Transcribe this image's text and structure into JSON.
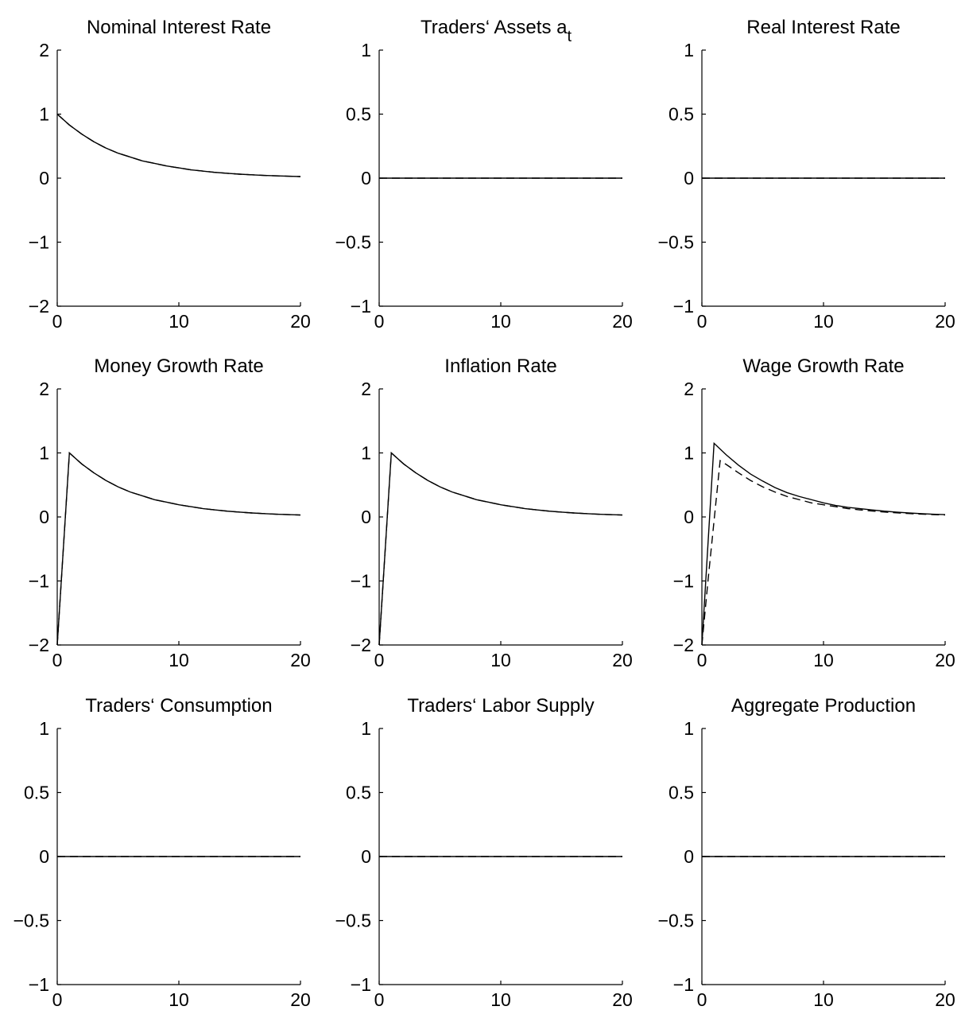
{
  "chart_data": [
    {
      "type": "line",
      "title": "Nominal Interest Rate",
      "xlim": [
        0,
        20
      ],
      "ylim": [
        -2,
        2
      ],
      "xticks": [
        0,
        10,
        20
      ],
      "yticks": [
        -2,
        -1,
        0,
        1,
        2
      ],
      "x": [
        0,
        1,
        2,
        3,
        4,
        5,
        6,
        7,
        8,
        9,
        10,
        11,
        12,
        13,
        14,
        15,
        16,
        17,
        18,
        19,
        20
      ],
      "series": [
        {
          "style": "solid",
          "values": [
            1.0,
            0.83,
            0.69,
            0.57,
            0.47,
            0.39,
            0.33,
            0.27,
            0.23,
            0.19,
            0.16,
            0.13,
            0.11,
            0.09,
            0.075,
            0.062,
            0.052,
            0.043,
            0.036,
            0.03,
            0.025
          ]
        },
        {
          "style": "dashed",
          "values": [
            1.0,
            0.83,
            0.69,
            0.57,
            0.47,
            0.39,
            0.33,
            0.27,
            0.23,
            0.19,
            0.16,
            0.13,
            0.11,
            0.09,
            0.075,
            0.062,
            0.052,
            0.043,
            0.036,
            0.03,
            0.025
          ]
        }
      ]
    },
    {
      "type": "line",
      "title": "Traders‘ Assets a",
      "title_subscript": "t",
      "xlim": [
        0,
        20
      ],
      "ylim": [
        -1,
        1
      ],
      "xticks": [
        0,
        10,
        20
      ],
      "yticks": [
        -1,
        -0.5,
        0,
        0.5,
        1
      ],
      "x": [
        0,
        20
      ],
      "series": [
        {
          "style": "solid",
          "values": [
            0,
            0
          ]
        },
        {
          "style": "dashed",
          "values": [
            0,
            0
          ]
        }
      ]
    },
    {
      "type": "line",
      "title": "Real Interest Rate",
      "xlim": [
        0,
        20
      ],
      "ylim": [
        -1,
        1
      ],
      "xticks": [
        0,
        10,
        20
      ],
      "yticks": [
        -1,
        -0.5,
        0,
        0.5,
        1
      ],
      "x": [
        0,
        20
      ],
      "series": [
        {
          "style": "solid",
          "values": [
            0,
            0
          ]
        },
        {
          "style": "dashed",
          "values": [
            0,
            0
          ]
        }
      ]
    },
    {
      "type": "line",
      "title": "Money Growth Rate",
      "xlim": [
        0,
        20
      ],
      "ylim": [
        -2,
        2
      ],
      "xticks": [
        0,
        10,
        20
      ],
      "yticks": [
        -2,
        -1,
        0,
        1,
        2
      ],
      "x": [
        0,
        1,
        2,
        3,
        4,
        5,
        6,
        7,
        8,
        9,
        10,
        11,
        12,
        13,
        14,
        15,
        16,
        17,
        18,
        19,
        20
      ],
      "series": [
        {
          "style": "solid",
          "values": [
            -2.0,
            1.0,
            0.83,
            0.69,
            0.57,
            0.47,
            0.39,
            0.33,
            0.27,
            0.23,
            0.19,
            0.16,
            0.13,
            0.11,
            0.09,
            0.075,
            0.062,
            0.052,
            0.043,
            0.036,
            0.03
          ]
        },
        {
          "style": "dashed",
          "values": [
            -2.0,
            1.0,
            0.83,
            0.69,
            0.57,
            0.47,
            0.39,
            0.33,
            0.27,
            0.23,
            0.19,
            0.16,
            0.13,
            0.11,
            0.09,
            0.075,
            0.062,
            0.052,
            0.043,
            0.036,
            0.03
          ]
        }
      ]
    },
    {
      "type": "line",
      "title": "Inflation Rate",
      "xlim": [
        0,
        20
      ],
      "ylim": [
        -2,
        2
      ],
      "xticks": [
        0,
        10,
        20
      ],
      "yticks": [
        -2,
        -1,
        0,
        1,
        2
      ],
      "x": [
        0,
        1,
        2,
        3,
        4,
        5,
        6,
        7,
        8,
        9,
        10,
        11,
        12,
        13,
        14,
        15,
        16,
        17,
        18,
        19,
        20
      ],
      "series": [
        {
          "style": "solid",
          "values": [
            -2.0,
            1.0,
            0.83,
            0.69,
            0.57,
            0.47,
            0.39,
            0.33,
            0.27,
            0.23,
            0.19,
            0.16,
            0.13,
            0.11,
            0.09,
            0.075,
            0.062,
            0.052,
            0.043,
            0.036,
            0.03
          ]
        },
        {
          "style": "dashed",
          "values": [
            -2.0,
            1.0,
            0.83,
            0.69,
            0.57,
            0.47,
            0.39,
            0.33,
            0.27,
            0.23,
            0.19,
            0.16,
            0.13,
            0.11,
            0.09,
            0.075,
            0.062,
            0.052,
            0.043,
            0.036,
            0.03
          ]
        }
      ]
    },
    {
      "type": "line",
      "title": "Wage Growth Rate",
      "xlim": [
        0,
        20
      ],
      "ylim": [
        -2,
        2
      ],
      "xticks": [
        0,
        10,
        20
      ],
      "yticks": [
        -2,
        -1,
        0,
        1,
        2
      ],
      "x_solid": [
        0,
        1,
        2,
        3,
        4,
        5,
        6,
        7,
        8,
        9,
        10,
        11,
        12,
        13,
        14,
        15,
        16,
        17,
        18,
        19,
        20
      ],
      "x_dashed": [
        0,
        0.5,
        1.5,
        2,
        3,
        4,
        5,
        6,
        7,
        8,
        9,
        10,
        11,
        12,
        13,
        14,
        15,
        16,
        17,
        18,
        19,
        20
      ],
      "series": [
        {
          "style": "solid",
          "x_key": "x_solid",
          "values": [
            -2.0,
            1.15,
            0.97,
            0.81,
            0.67,
            0.56,
            0.46,
            0.38,
            0.32,
            0.27,
            0.22,
            0.18,
            0.15,
            0.13,
            0.11,
            0.09,
            0.075,
            0.062,
            0.052,
            0.043,
            0.036
          ]
        },
        {
          "style": "dashed",
          "x_key": "x_dashed",
          "values": [
            -2.0,
            -1.0,
            0.88,
            0.82,
            0.69,
            0.57,
            0.47,
            0.39,
            0.32,
            0.27,
            0.22,
            0.19,
            0.16,
            0.13,
            0.11,
            0.092,
            0.077,
            0.064,
            0.053,
            0.044,
            0.037,
            0.031
          ]
        }
      ]
    },
    {
      "type": "line",
      "title": "Traders‘ Consumption",
      "xlim": [
        0,
        20
      ],
      "ylim": [
        -1,
        1
      ],
      "xticks": [
        0,
        10,
        20
      ],
      "yticks": [
        -1,
        -0.5,
        0,
        0.5,
        1
      ],
      "x": [
        0,
        20
      ],
      "series": [
        {
          "style": "solid",
          "values": [
            0,
            0
          ]
        },
        {
          "style": "dashed",
          "values": [
            0,
            0
          ]
        }
      ]
    },
    {
      "type": "line",
      "title": "Traders‘ Labor Supply",
      "xlim": [
        0,
        20
      ],
      "ylim": [
        -1,
        1
      ],
      "xticks": [
        0,
        10,
        20
      ],
      "yticks": [
        -1,
        -0.5,
        0,
        0.5,
        1
      ],
      "x": [
        0,
        20
      ],
      "series": [
        {
          "style": "solid",
          "values": [
            0,
            0
          ]
        },
        {
          "style": "dashed",
          "values": [
            0,
            0
          ]
        }
      ]
    },
    {
      "type": "line",
      "title": "Aggregate Production",
      "xlim": [
        0,
        20
      ],
      "ylim": [
        -1,
        1
      ],
      "xticks": [
        0,
        10,
        20
      ],
      "yticks": [
        -1,
        -0.5,
        0,
        0.5,
        1
      ],
      "x": [
        0,
        20
      ],
      "series": [
        {
          "style": "solid",
          "values": [
            0,
            0
          ]
        },
        {
          "style": "dashed",
          "values": [
            0,
            0
          ]
        }
      ]
    }
  ]
}
